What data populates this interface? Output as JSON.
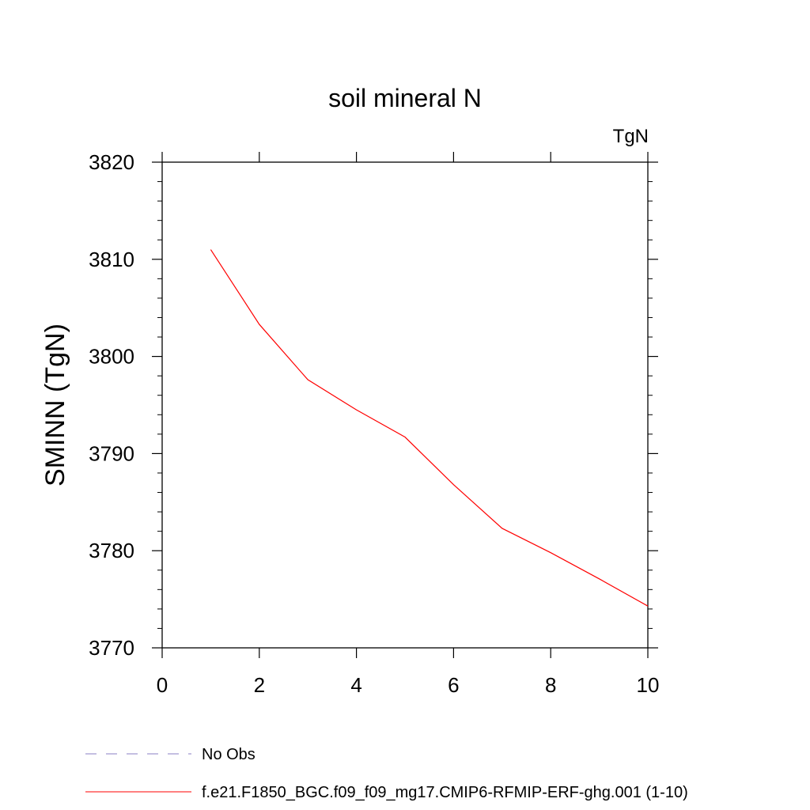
{
  "chart_data": {
    "type": "line",
    "title": "soil mineral N",
    "units_label": "TgN",
    "xlabel": "",
    "ylabel": "SMINN  (TgN)",
    "xlim": [
      0,
      10
    ],
    "ylim": [
      3770,
      3820
    ],
    "x_ticks": [
      0,
      2,
      4,
      6,
      8,
      10
    ],
    "y_ticks": [
      3770,
      3780,
      3790,
      3800,
      3810,
      3820
    ],
    "grid": false,
    "legend_position": "bottom",
    "series": [
      {
        "name": "f.e21.F1850_BGC.f09_f09_mg17.CMIP6-RFMIP-ERF-ghg.001 (1-10)",
        "color": "#ff0000",
        "x": [
          1,
          2,
          3,
          4,
          5,
          6,
          7,
          8,
          9,
          10
        ],
        "values": [
          3811.0,
          3803.3,
          3797.6,
          3794.5,
          3791.7,
          3786.8,
          3782.3,
          3779.8,
          3777.1,
          3774.3
        ]
      }
    ],
    "legend": [
      {
        "label": "No Obs",
        "color": "#8a7fc4",
        "style": "dashed"
      },
      {
        "label": "f.e21.F1850_BGC.f09_f09_mg17.CMIP6-RFMIP-ERF-ghg.001 (1-10)",
        "color": "#ff0000",
        "style": "solid"
      }
    ]
  }
}
